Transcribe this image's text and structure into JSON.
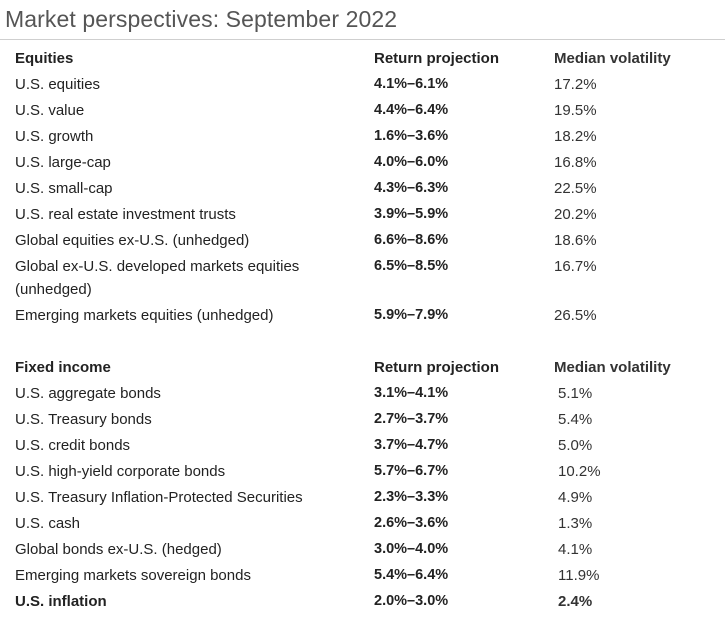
{
  "title": "Market perspectives: September 2022",
  "equities": {
    "headers": [
      "Equities",
      "Return projection",
      "Median volatility"
    ],
    "rows": [
      {
        "name": "U.S. equities",
        "ret": "4.1%–6.1%",
        "vol": "17.2%"
      },
      {
        "name": "U.S. value",
        "ret": "4.4%–6.4%",
        "vol": "19.5%"
      },
      {
        "name": "U.S. growth",
        "ret": "1.6%–3.6%",
        "vol": "18.2%"
      },
      {
        "name": "U.S. large-cap",
        "ret": "4.0%–6.0%",
        "vol": "16.8%"
      },
      {
        "name": "U.S. small-cap",
        "ret": "4.3%–6.3%",
        "vol": "22.5%"
      },
      {
        "name": "U.S. real estate investment trusts",
        "ret": "3.9%–5.9%",
        "vol": "20.2%"
      },
      {
        "name": "Global equities ex-U.S. (unhedged)",
        "ret": "6.6%–8.6%",
        "vol": "18.6%"
      },
      {
        "name": "Global ex-U.S. developed markets equities (unhedged)",
        "ret": "6.5%–8.5%",
        "vol": "16.7%"
      },
      {
        "name": "Emerging markets equities (unhedged)",
        "ret": "5.9%–7.9%",
        "vol": "26.5%"
      }
    ]
  },
  "fixed_income": {
    "headers": [
      "Fixed income",
      "Return projection",
      "Median volatility"
    ],
    "rows": [
      {
        "name": "U.S. aggregate bonds",
        "ret": "3.1%–4.1%",
        "vol": "5.1%"
      },
      {
        "name": "U.S. Treasury bonds",
        "ret": "2.7%–3.7%",
        "vol": "5.4%"
      },
      {
        "name": "U.S. credit bonds",
        "ret": "3.7%–4.7%",
        "vol": "5.0%"
      },
      {
        "name": "U.S. high-yield corporate bonds",
        "ret": "5.7%–6.7%",
        "vol": "10.2%"
      },
      {
        "name": "U.S. Treasury Inflation-Protected Securities",
        "ret": "2.3%–3.3%",
        "vol": "4.9%"
      },
      {
        "name": "U.S. cash",
        "ret": "2.6%–3.6%",
        "vol": "1.3%"
      },
      {
        "name": "Global bonds ex-U.S. (hedged)",
        "ret": "3.0%–4.0%",
        "vol": "4.1%"
      },
      {
        "name": "Emerging markets sovereign bonds",
        "ret": "5.4%–6.4%",
        "vol": "11.9%"
      }
    ]
  },
  "inflation": {
    "name": "U.S. inflation",
    "ret": "2.0%–3.0%",
    "vol": "2.4%"
  }
}
